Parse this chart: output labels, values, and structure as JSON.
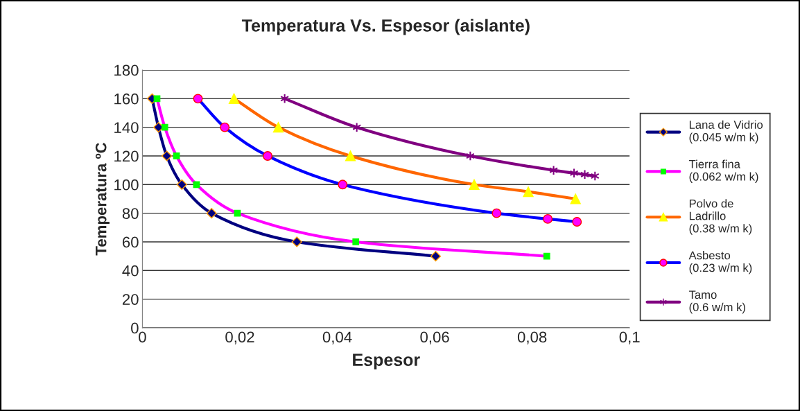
{
  "chart_data": {
    "type": "line",
    "title": "Temperatura Vs. Espesor (aislante)",
    "xlabel": "Espesor",
    "ylabel": "Temperatura ºC",
    "xlim": [
      0,
      0.1
    ],
    "xticks": [
      {
        "value": 0,
        "label": "0"
      },
      {
        "value": 0.02,
        "label": "0,02"
      },
      {
        "value": 0.04,
        "label": "0,04"
      },
      {
        "value": 0.06,
        "label": "0,06"
      },
      {
        "value": 0.08,
        "label": "0,08"
      },
      {
        "value": 0.1,
        "label": "0,1"
      }
    ],
    "ylim": [
      0,
      180
    ],
    "yticks": [
      0,
      20,
      40,
      60,
      80,
      100,
      120,
      140,
      160,
      180
    ],
    "grid": "y",
    "legend": "right",
    "series": [
      {
        "name": "Lana de Vidrio\n(0.045 w/m k)",
        "color": "#000080",
        "marker": "diamond",
        "x": [
          0.002,
          0.0033,
          0.005,
          0.0081,
          0.0142,
          0.0317,
          0.0602
        ],
        "values": [
          160,
          140,
          120,
          100,
          80,
          60,
          50
        ]
      },
      {
        "name": "Tierra fina\n(0.062 w/m k)",
        "color": "#ff00ff",
        "marker": "square",
        "colors": [
          "#00ff00",
          "#00ff00",
          "#00ff00",
          "#00ff00",
          "#00ff00",
          "#00ff00",
          "#00ff00"
        ],
        "x": [
          0.003,
          0.0046,
          0.007,
          0.0111,
          0.0195,
          0.0438,
          0.083
        ],
        "values": [
          160,
          140,
          120,
          100,
          80,
          60,
          50
        ]
      },
      {
        "name": "Polvo de\nLadrillo\n(0.38 w/m k)",
        "color": "#ff6600",
        "marker": "triangle",
        "colors": [
          "#ffff00",
          "#ffff00",
          "#ffff00",
          "#ffff00",
          "#ffff00",
          "#ffff00"
        ],
        "x": [
          0.0188,
          0.0279,
          0.0427,
          0.0681,
          0.0792,
          0.0889
        ],
        "values": [
          160,
          140,
          120,
          100,
          95,
          90
        ]
      },
      {
        "name": "Asbesto\n(0.23 w/m k)",
        "color": "#0000ff",
        "marker": "circle",
        "colors": [
          "#ff00ff",
          "#ff00ff",
          "#ff00ff",
          "#ff00ff",
          "#ff00ff",
          "#ff00ff",
          "#ff00ff"
        ],
        "x": [
          0.0114,
          0.0169,
          0.0257,
          0.0411,
          0.0727,
          0.0832,
          0.0892
        ],
        "values": [
          160,
          140,
          120,
          100,
          80,
          76,
          74
        ]
      },
      {
        "name": "Tamo\n(0.6 w/m k)",
        "color": "#800080",
        "marker": "cross",
        "x": [
          0.0292,
          0.044,
          0.0673,
          0.0844,
          0.0886,
          0.0908,
          0.0929
        ],
        "values": [
          160,
          140,
          120,
          110,
          108,
          107,
          106
        ]
      }
    ]
  }
}
